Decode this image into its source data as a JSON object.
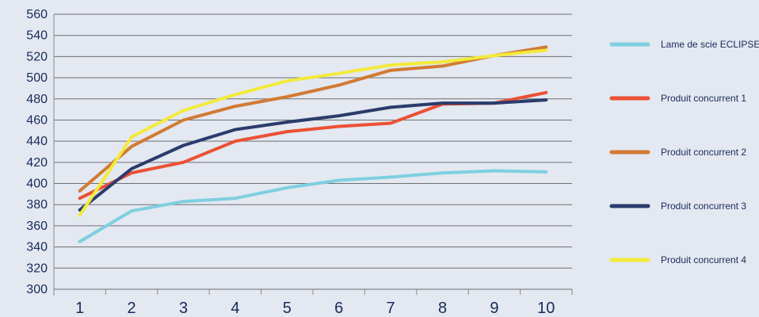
{
  "chart_data": {
    "type": "line",
    "title": "",
    "xlabel": "",
    "ylabel": "",
    "x": [
      1,
      2,
      3,
      4,
      5,
      6,
      7,
      8,
      9,
      10
    ],
    "x_tick_labels": [
      "1",
      "2",
      "3",
      "4",
      "5",
      "6",
      "7",
      "8",
      "9",
      "10"
    ],
    "ylim": [
      300,
      560
    ],
    "y_ticks": [
      300,
      320,
      340,
      360,
      380,
      400,
      420,
      440,
      460,
      480,
      500,
      520,
      540,
      560
    ],
    "y_tick_labels": [
      "300",
      "320",
      "340",
      "360",
      "380",
      "400",
      "420",
      "440",
      "460",
      "480",
      "500",
      "520",
      "540",
      "560"
    ],
    "grid": true,
    "legend_position": "right",
    "series": [
      {
        "name": "Lame de scie ECLIPSE",
        "color": "#7ecfe0",
        "values": [
          345,
          374,
          383,
          386,
          396,
          403,
          406,
          410,
          412,
          411
        ]
      },
      {
        "name": "Produit concurrent 1",
        "color": "#ec5034",
        "values": [
          386,
          410,
          420,
          440,
          449,
          454,
          457,
          475,
          476,
          486
        ]
      },
      {
        "name": "Produit concurrent 2",
        "color": "#d17a34",
        "values": [
          393,
          435,
          460,
          473,
          482,
          493,
          507,
          511,
          521,
          529
        ]
      },
      {
        "name": "Produit concurrent 3",
        "color": "#2b3b6c",
        "values": [
          375,
          414,
          436,
          451,
          458,
          464,
          472,
          476,
          476,
          479
        ]
      },
      {
        "name": "Produit concurrent 4",
        "color": "#f3ea3c",
        "values": [
          370,
          444,
          469,
          484,
          497,
          504,
          512,
          515,
          521,
          526
        ]
      }
    ]
  }
}
